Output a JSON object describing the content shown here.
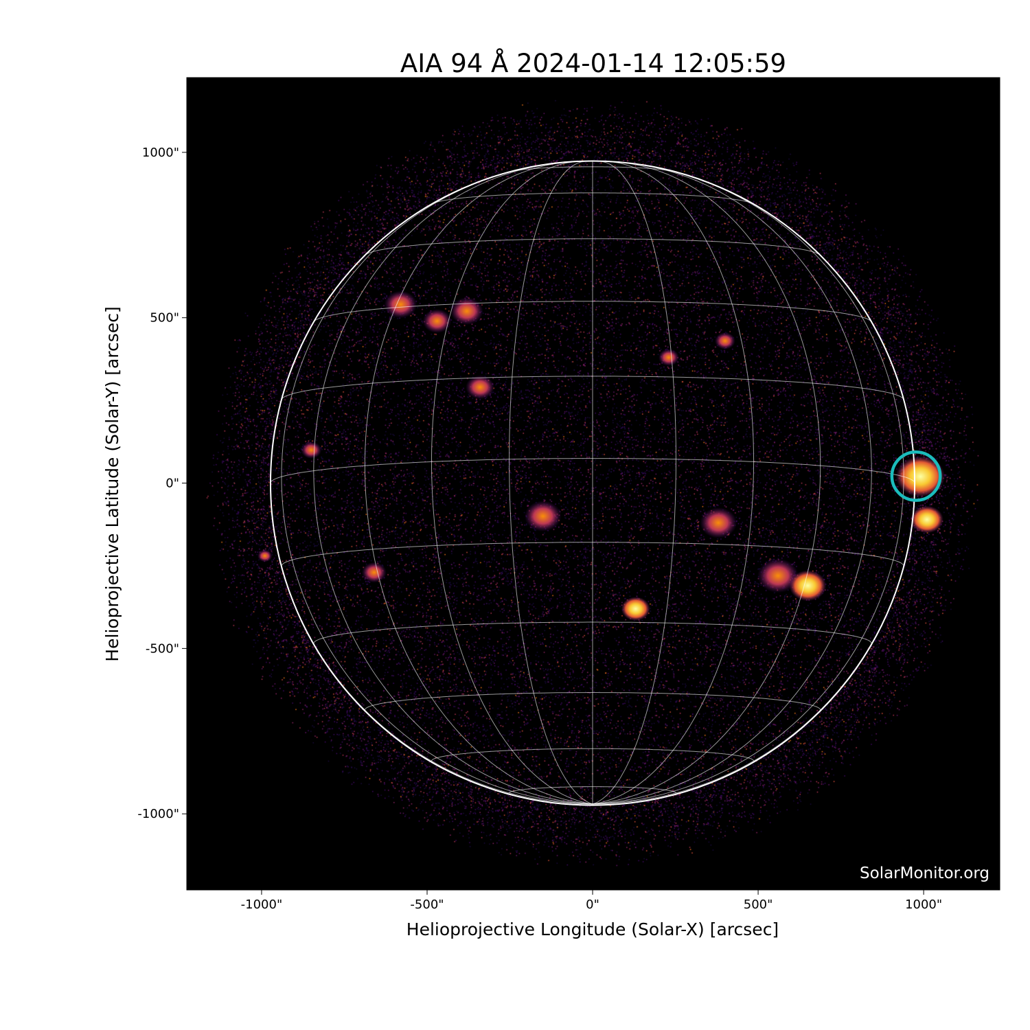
{
  "chart_data": {
    "type": "image",
    "title": "AIA 94 Å 2024-01-14 12:05:59",
    "xlabel": "Helioprojective Longitude (Solar-X) [arcsec]",
    "ylabel": "Helioprojective Latitude (Solar-Y) [arcsec]",
    "xlim": [
      -1226,
      1230
    ],
    "ylim": [
      -1230,
      1226
    ],
    "xticks": [
      -1000,
      -500,
      0,
      500,
      1000
    ],
    "xtick_labels": [
      "-1000\"",
      "-500\"",
      "0\"",
      "500\"",
      "1000\""
    ],
    "yticks": [
      1000,
      500,
      0,
      -500,
      -1000
    ],
    "ytick_labels": [
      "1000\"",
      "500\"",
      "0\"",
      "-500\"",
      "-1000\""
    ],
    "colormap": "inferno",
    "solar_radius_arcsec": 973,
    "grid": {
      "type": "heliographic",
      "spacing_deg": 15,
      "color": "#ffffff"
    },
    "annotation": {
      "shape": "circle",
      "center": [
        977,
        21
      ],
      "radius": 73,
      "color": "#1bbcbc"
    },
    "watermark": "SolarMonitor.org"
  }
}
